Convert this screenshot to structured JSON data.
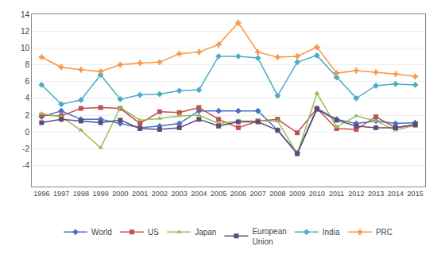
{
  "chart_data": {
    "type": "line",
    "x": [
      1996,
      1997,
      1998,
      1999,
      2000,
      2001,
      2002,
      2003,
      2004,
      2005,
      2006,
      2007,
      2008,
      2009,
      2010,
      2011,
      2012,
      2013,
      2014,
      2015
    ],
    "series": [
      {
        "name": "World",
        "color": "#4472c4",
        "marker": "diamond",
        "values": [
          1.8,
          2.5,
          1.5,
          1.5,
          1.0,
          0.5,
          0.7,
          1.0,
          2.5,
          2.5,
          2.5,
          2.5,
          0.2,
          -2.5,
          2.8,
          1.5,
          1.0,
          1.3,
          1.0,
          1.1
        ]
      },
      {
        "name": "US",
        "color": "#c0504d",
        "marker": "square",
        "values": [
          2.0,
          1.9,
          2.8,
          2.9,
          2.8,
          1.0,
          2.4,
          2.3,
          2.9,
          1.5,
          0.5,
          1.3,
          1.5,
          -0.1,
          2.8,
          0.4,
          0.3,
          1.8,
          0.5,
          0.8
        ]
      },
      {
        "name": "Japan",
        "color": "#9bbb59",
        "marker": "triangle-up",
        "values": [
          2.2,
          1.8,
          0.2,
          -1.9,
          2.9,
          1.4,
          1.6,
          1.9,
          2.0,
          1.0,
          1.3,
          1.3,
          1.3,
          -2.6,
          4.6,
          0.6,
          1.9,
          1.3,
          0.2,
          0.8
        ]
      },
      {
        "name": "European\nUnion",
        "color": "#604a7b",
        "marker": "square",
        "values": [
          1.1,
          1.5,
          1.3,
          1.1,
          1.4,
          0.4,
          0.3,
          0.5,
          1.5,
          0.7,
          1.2,
          1.2,
          0.2,
          -2.6,
          2.7,
          1.4,
          0.7,
          0.5,
          0.5,
          0.9
        ]
      },
      {
        "name": "India",
        "color": "#4bacc6",
        "marker": "diamond",
        "values": [
          5.6,
          3.3,
          3.8,
          6.8,
          3.9,
          4.4,
          4.5,
          4.9,
          5.0,
          9.0,
          9.0,
          8.8,
          4.3,
          8.3,
          9.1,
          6.5,
          4.0,
          5.5,
          5.7,
          5.6
        ]
      },
      {
        "name": "PRC",
        "color": "#f79646",
        "marker": "cross",
        "values": [
          8.9,
          7.7,
          7.4,
          7.2,
          8.0,
          8.2,
          8.3,
          9.3,
          9.5,
          10.4,
          13.0,
          9.5,
          8.9,
          9.0,
          10.1,
          7.0,
          7.3,
          7.1,
          6.9,
          6.6
        ]
      }
    ],
    "xlim": [
      1995.5,
      2015.5
    ],
    "xticks": [
      1996,
      1997,
      1998,
      1999,
      2000,
      2001,
      2002,
      2003,
      2004,
      2005,
      2006,
      2007,
      2008,
      2009,
      2010,
      2011,
      2012,
      2013,
      2014,
      2015
    ],
    "ylim": [
      -6.5,
      14.0
    ],
    "yticks": [
      -4,
      -2,
      0,
      2,
      4,
      6,
      8,
      10,
      12,
      14
    ],
    "grid": true,
    "legend": "bottom"
  }
}
